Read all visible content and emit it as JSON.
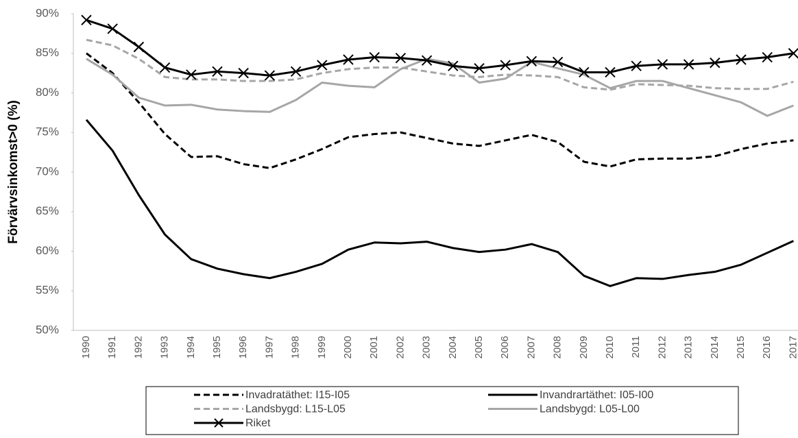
{
  "chart_data": {
    "type": "line",
    "y_label": "Förvärvsinkomst>0 (%)",
    "categories": [
      "1990",
      "1991",
      "1992",
      "1993",
      "1994",
      "1995",
      "1996",
      "1997",
      "1998",
      "1999",
      "2000",
      "2001",
      "2002",
      "2003",
      "2004",
      "2005",
      "2006",
      "2007",
      "2008",
      "2009",
      "2010",
      "2011",
      "2012",
      "2013",
      "2014",
      "2015",
      "2016",
      "2017"
    ],
    "ylim": [
      50,
      90
    ],
    "yticks": [
      {
        "value": 50,
        "label": "50%"
      },
      {
        "value": 55,
        "label": "55%"
      },
      {
        "value": 60,
        "label": "60%"
      },
      {
        "value": 65,
        "label": "65%"
      },
      {
        "value": 70,
        "label": "70%"
      },
      {
        "value": 75,
        "label": "75%"
      },
      {
        "value": 80,
        "label": "80%"
      },
      {
        "value": 85,
        "label": "85%"
      },
      {
        "value": 90,
        "label": "90%"
      }
    ],
    "grid": false,
    "legend": "bottom",
    "series": [
      {
        "name": "Invadratäthet: I15-I05",
        "color": "#000000",
        "style": "dashed",
        "values": [
          85.0,
          82.5,
          78.8,
          74.8,
          71.9,
          72.0,
          71.0,
          70.5,
          71.6,
          72.9,
          74.4,
          74.8,
          75.0,
          74.3,
          73.6,
          73.3,
          74.0,
          74.7,
          73.8,
          71.3,
          70.7,
          71.6,
          71.7,
          71.7,
          72.0,
          72.9,
          73.6,
          74.0
        ]
      },
      {
        "name": "Invandrartäthet: I05-I00",
        "color": "#000000",
        "style": "solid",
        "values": [
          76.6,
          72.7,
          67.1,
          62.1,
          59.0,
          57.8,
          57.1,
          56.6,
          57.4,
          58.4,
          60.2,
          61.1,
          61.0,
          61.2,
          60.4,
          59.9,
          60.2,
          60.9,
          59.9,
          56.9,
          55.6,
          56.6,
          56.5,
          57.0,
          57.4,
          58.3,
          59.8,
          61.3
        ]
      },
      {
        "name": "Landsbygd: L15-L05",
        "color": "#a6a6a6",
        "style": "dashed",
        "values": [
          86.7,
          86.0,
          84.3,
          82.0,
          81.7,
          81.7,
          81.5,
          81.5,
          81.7,
          82.5,
          83.0,
          83.2,
          83.2,
          82.7,
          82.2,
          82.0,
          82.3,
          82.2,
          82.0,
          80.7,
          80.4,
          81.1,
          81.0,
          80.9,
          80.6,
          80.5,
          80.5,
          81.4
        ]
      },
      {
        "name": "Landsbygd: L05-L00",
        "color": "#a6a6a6",
        "style": "solid",
        "values": [
          84.3,
          82.3,
          79.4,
          78.4,
          78.5,
          77.9,
          77.7,
          77.6,
          79.1,
          81.3,
          80.9,
          80.7,
          83.0,
          84.3,
          83.7,
          81.3,
          81.8,
          83.9,
          83.1,
          82.3,
          80.6,
          81.5,
          81.5,
          80.6,
          79.7,
          78.8,
          77.1,
          78.4
        ]
      },
      {
        "name": "Riket",
        "color": "#000000",
        "style": "solid",
        "marker": "x",
        "values": [
          89.2,
          88.1,
          85.8,
          83.2,
          82.3,
          82.7,
          82.5,
          82.2,
          82.7,
          83.5,
          84.2,
          84.5,
          84.4,
          84.1,
          83.4,
          83.1,
          83.5,
          84.0,
          83.9,
          82.6,
          82.6,
          83.4,
          83.6,
          83.6,
          83.8,
          84.2,
          84.5,
          85.0
        ]
      }
    ]
  }
}
